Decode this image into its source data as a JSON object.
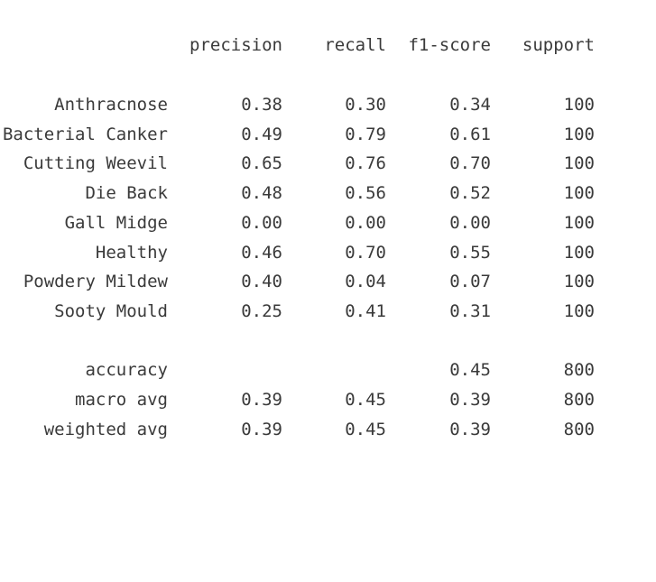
{
  "header": {
    "precision": "precision",
    "recall": "recall",
    "f1": "f1-score",
    "support": "support"
  },
  "classes": [
    {
      "label": "Anthracnose",
      "precision": "0.38",
      "recall": "0.30",
      "f1": "0.34",
      "support": "100"
    },
    {
      "label": "Bacterial Canker",
      "precision": "0.49",
      "recall": "0.79",
      "f1": "0.61",
      "support": "100"
    },
    {
      "label": "Cutting Weevil",
      "precision": "0.65",
      "recall": "0.76",
      "f1": "0.70",
      "support": "100"
    },
    {
      "label": "Die Back",
      "precision": "0.48",
      "recall": "0.56",
      "f1": "0.52",
      "support": "100"
    },
    {
      "label": "Gall Midge",
      "precision": "0.00",
      "recall": "0.00",
      "f1": "0.00",
      "support": "100"
    },
    {
      "label": "Healthy",
      "precision": "0.46",
      "recall": "0.70",
      "f1": "0.55",
      "support": "100"
    },
    {
      "label": "Powdery Mildew",
      "precision": "0.40",
      "recall": "0.04",
      "f1": "0.07",
      "support": "100"
    },
    {
      "label": "Sooty Mould",
      "precision": "0.25",
      "recall": "0.41",
      "f1": "0.31",
      "support": "100"
    }
  ],
  "summary": [
    {
      "label": "accuracy",
      "precision": "",
      "recall": "",
      "f1": "0.45",
      "support": "800"
    },
    {
      "label": "macro avg",
      "precision": "0.39",
      "recall": "0.45",
      "f1": "0.39",
      "support": "800"
    },
    {
      "label": "weighted avg",
      "precision": "0.39",
      "recall": "0.45",
      "f1": "0.39",
      "support": "800"
    }
  ]
}
